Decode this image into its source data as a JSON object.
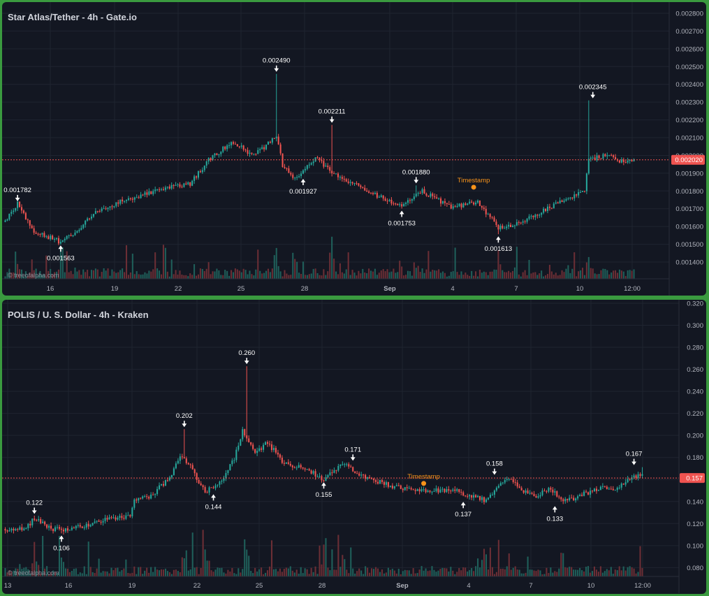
{
  "chart_data": [
    {
      "type": "candlestick",
      "title": "Star Atlas/Tether - 4h - Gate.io",
      "watermark": "© treeofalpha.com",
      "ylim": [
        0.00135,
        0.00281
      ],
      "y_ticks": [
        "0.002800",
        "0.002700",
        "0.002600",
        "0.002500",
        "0.002400",
        "0.002300",
        "0.002200",
        "0.002100",
        "0.002000",
        "0.001900",
        "0.001800",
        "0.001700",
        "0.001600",
        "0.001500",
        "0.001400"
      ],
      "x_ticks": [
        "16",
        "19",
        "22",
        "25",
        "28",
        "Sep",
        "4",
        "7",
        "10",
        "12:00"
      ],
      "current_price": 0.00202,
      "current_price_label": "0.002020",
      "colors": {
        "up": "#26a69a",
        "down": "#ef5350",
        "price_line": "#ef5350",
        "timestamp": "#f7931a"
      },
      "path_points": [
        [
          0,
          0.00168
        ],
        [
          6,
          0.00178
        ],
        [
          14,
          0.00163
        ],
        [
          27,
          0.00157
        ],
        [
          36,
          0.00164
        ],
        [
          44,
          0.00174
        ],
        [
          56,
          0.00179
        ],
        [
          76,
          0.00186
        ],
        [
          90,
          0.00189
        ],
        [
          100,
          0.00203
        ],
        [
          111,
          0.00212
        ],
        [
          121,
          0.00204
        ],
        [
          132,
          0.00215
        ],
        [
          135,
          0.00199
        ],
        [
          141,
          0.00192
        ],
        [
          151,
          0.00203
        ],
        [
          162,
          0.00193
        ],
        [
          176,
          0.00185
        ],
        [
          193,
          0.00176
        ],
        [
          203,
          0.00185
        ],
        [
          217,
          0.00176
        ],
        [
          230,
          0.00179
        ],
        [
          240,
          0.00165
        ],
        [
          252,
          0.00168
        ],
        [
          265,
          0.00176
        ],
        [
          282,
          0.00185
        ],
        [
          284,
          0.00202
        ],
        [
          294,
          0.00205
        ],
        [
          300,
          0.00201
        ]
      ],
      "extremes": [
        {
          "x": 6,
          "y": 0.001782
        },
        {
          "x": 27,
          "y": 0.001563
        },
        {
          "x": 132,
          "y": 0.00249
        },
        {
          "x": 141,
          "y": 0.001927
        },
        {
          "x": 159,
          "y": 0.002211
        },
        {
          "x": 193,
          "y": 0.001753
        },
        {
          "x": 200,
          "y": 0.00188
        },
        {
          "x": 240,
          "y": 0.001613
        },
        {
          "x": 284,
          "y": 0.002345
        }
      ],
      "annotations": [
        {
          "label": "0.001782",
          "x": 6,
          "y": 0.001782,
          "dir": "down"
        },
        {
          "label": "0.001563",
          "x": 27,
          "y": 0.001563,
          "dir": "up"
        },
        {
          "label": "0.002490",
          "x": 132,
          "y": 0.00249,
          "dir": "down"
        },
        {
          "label": "0.001927",
          "x": 145,
          "y": 0.001927,
          "dir": "up"
        },
        {
          "label": "0.002211",
          "x": 159,
          "y": 0.002211,
          "dir": "down"
        },
        {
          "label": "0.001753",
          "x": 193,
          "y": 0.001753,
          "dir": "up"
        },
        {
          "label": "0.001880",
          "x": 200,
          "y": 0.00188,
          "dir": "down"
        },
        {
          "label": "0.001613",
          "x": 240,
          "y": 0.001613,
          "dir": "up"
        },
        {
          "label": "0.002345",
          "x": 286,
          "y": 0.002345,
          "dir": "down"
        }
      ],
      "timestamp": {
        "label": "Timestamp",
        "x": 228,
        "y": 0.00187
      }
    },
    {
      "type": "candlestick",
      "title": "POLIS / U. S. Dollar - 4h - Kraken",
      "watermark": "© treeofalpha.com",
      "ylim": [
        0.065,
        0.32
      ],
      "y_ticks": [
        "0.320",
        "0.300",
        "0.280",
        "0.260",
        "0.240",
        "0.220",
        "0.200",
        "0.180",
        "0.160",
        "0.140",
        "0.120",
        "0.100",
        "0.080"
      ],
      "x_ticks": [
        "13",
        "16",
        "19",
        "22",
        "25",
        "28",
        "Sep",
        "4",
        "7",
        "10",
        "12:00"
      ],
      "current_price": 0.157,
      "current_price_label": "0.157",
      "colors": {
        "up": "#26a69a",
        "down": "#ef5350",
        "price_line": "#ef5350",
        "timestamp": "#f7931a"
      },
      "path_points": [
        [
          0,
          0.11
        ],
        [
          10,
          0.11
        ],
        [
          14,
          0.12
        ],
        [
          22,
          0.11
        ],
        [
          32,
          0.11
        ],
        [
          44,
          0.117
        ],
        [
          60,
          0.122
        ],
        [
          62,
          0.136
        ],
        [
          70,
          0.14
        ],
        [
          80,
          0.16
        ],
        [
          84,
          0.178
        ],
        [
          88,
          0.17
        ],
        [
          96,
          0.144
        ],
        [
          104,
          0.155
        ],
        [
          110,
          0.175
        ],
        [
          114,
          0.2
        ],
        [
          120,
          0.18
        ],
        [
          126,
          0.19
        ],
        [
          134,
          0.17
        ],
        [
          146,
          0.165
        ],
        [
          152,
          0.155
        ],
        [
          163,
          0.171
        ],
        [
          170,
          0.16
        ],
        [
          185,
          0.15
        ],
        [
          200,
          0.145
        ],
        [
          215,
          0.146
        ],
        [
          225,
          0.14
        ],
        [
          230,
          0.137
        ],
        [
          236,
          0.146
        ],
        [
          241,
          0.158
        ],
        [
          248,
          0.145
        ],
        [
          255,
          0.14
        ],
        [
          262,
          0.148
        ],
        [
          268,
          0.135
        ],
        [
          275,
          0.14
        ],
        [
          285,
          0.148
        ],
        [
          294,
          0.146
        ],
        [
          300,
          0.157
        ],
        [
          306,
          0.16
        ]
      ],
      "extremes": [
        {
          "x": 14,
          "y": 0.122
        },
        {
          "x": 27,
          "y": 0.106
        },
        {
          "x": 86,
          "y": 0.202
        },
        {
          "x": 96,
          "y": 0.144
        },
        {
          "x": 116,
          "y": 0.26
        },
        {
          "x": 152,
          "y": 0.155
        },
        {
          "x": 163,
          "y": 0.171
        },
        {
          "x": 230,
          "y": 0.137
        },
        {
          "x": 241,
          "y": 0.158
        },
        {
          "x": 268,
          "y": 0.133
        },
        {
          "x": 306,
          "y": 0.167
        }
      ],
      "annotations": [
        {
          "label": "0.122",
          "x": 14,
          "y": 0.122,
          "dir": "down"
        },
        {
          "label": "0.106",
          "x": 27,
          "y": 0.106,
          "dir": "up"
        },
        {
          "label": "0.202",
          "x": 86,
          "y": 0.202,
          "dir": "down"
        },
        {
          "label": "0.144",
          "x": 100,
          "y": 0.144,
          "dir": "up"
        },
        {
          "label": "0.260",
          "x": 116,
          "y": 0.26,
          "dir": "down"
        },
        {
          "label": "0.155",
          "x": 153,
          "y": 0.155,
          "dir": "up"
        },
        {
          "label": "0.171",
          "x": 167,
          "y": 0.171,
          "dir": "down"
        },
        {
          "label": "0.137",
          "x": 220,
          "y": 0.137,
          "dir": "up"
        },
        {
          "label": "0.158",
          "x": 235,
          "y": 0.158,
          "dir": "down"
        },
        {
          "label": "0.133",
          "x": 264,
          "y": 0.133,
          "dir": "up"
        },
        {
          "label": "0.167",
          "x": 302,
          "y": 0.167,
          "dir": "down"
        }
      ],
      "timestamp": {
        "label": "Timestamp",
        "x": 201,
        "y": 0.152
      }
    }
  ]
}
